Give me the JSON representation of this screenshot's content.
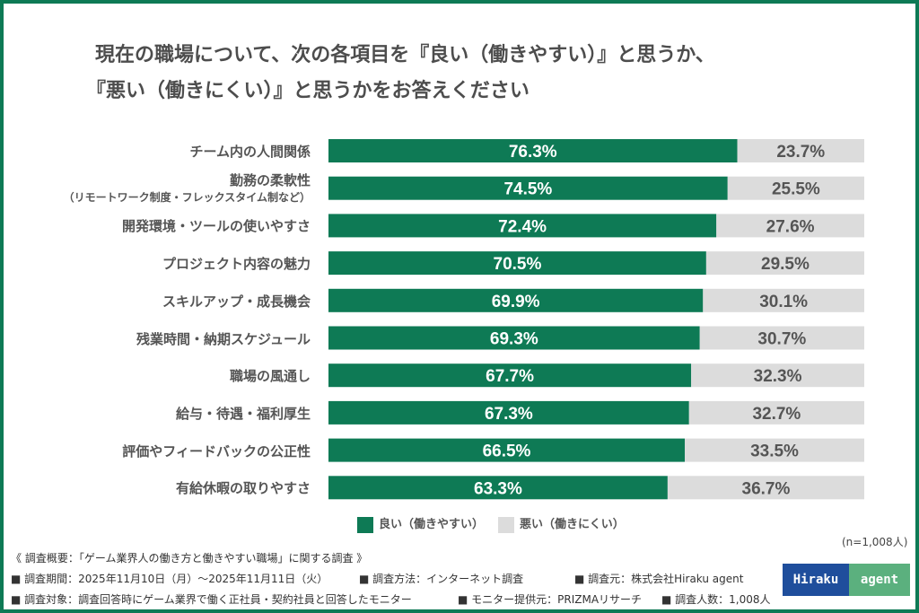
{
  "title_lines": [
    "現在の職場について、次の各項目を『良い（働きやすい）』と思うか、",
    "『悪い（働きにくい）』と思うかをお答えください"
  ],
  "colors": {
    "good": "#0e7a55",
    "bad": "#dcdcdc",
    "frame": "#0e7a55",
    "logo_left": "#1f4e9c",
    "logo_right": "#5bb07e"
  },
  "chart_data": {
    "type": "bar",
    "stacked": true,
    "orientation": "horizontal",
    "xlim": [
      0,
      100
    ],
    "categories": [
      "チーム内の人間関係",
      "勤務の柔軟性",
      "開発環境・ツールの使いやすさ",
      "プロジェクト内容の魅力",
      "スキルアップ・成長機会",
      "残業時間・納期スケジュール",
      "職場の風通し",
      "給与・待遇・福利厚生",
      "評価やフィードバックの公正性",
      "有給休暇の取りやすさ"
    ],
    "category_subs": [
      "",
      "（リモートワーク制度・フレックスタイム制など）",
      "",
      "",
      "",
      "",
      "",
      "",
      "",
      ""
    ],
    "series": [
      {
        "name": "良い（働きやすい）",
        "values": [
          76.3,
          74.5,
          72.4,
          70.5,
          69.9,
          69.3,
          67.7,
          67.3,
          66.5,
          63.3
        ],
        "labels": [
          "76.3%",
          "74.5%",
          "72.4%",
          "70.5%",
          "69.9%",
          "69.3%",
          "67.7%",
          "67.3%",
          "66.5%",
          "63.3%"
        ]
      },
      {
        "name": "悪い（働きにくい）",
        "values": [
          23.7,
          25.5,
          27.6,
          29.5,
          30.1,
          30.7,
          32.3,
          32.7,
          33.5,
          36.7
        ],
        "labels": [
          "23.7%",
          "25.5%",
          "27.6%",
          "29.5%",
          "30.1%",
          "30.7%",
          "32.3%",
          "32.7%",
          "33.5%",
          "36.7%"
        ]
      }
    ],
    "legend_position": "bottom"
  },
  "sample_size": "(n=1,008人)",
  "footer": {
    "summary": "《 調査概要：「ゲーム業界人の働き方と働きやすい職場」に関する調査 》",
    "line1": [
      "■ 調査期間：2025年11月10日（月）～2025年11月11日（火）",
      "■ 調査方法：インターネット調査",
      "■ 調査元：株式会社Hiraku agent"
    ],
    "line2": [
      "■ 調査対象：調査回答時にゲーム業界で働く正社員・契約社員と回答したモニター",
      "■ モニター提供元：PRIZMAリサーチ",
      "■ 調査人数：1,008人"
    ]
  },
  "logo": {
    "left": "Hiraku",
    "right": "agent"
  }
}
